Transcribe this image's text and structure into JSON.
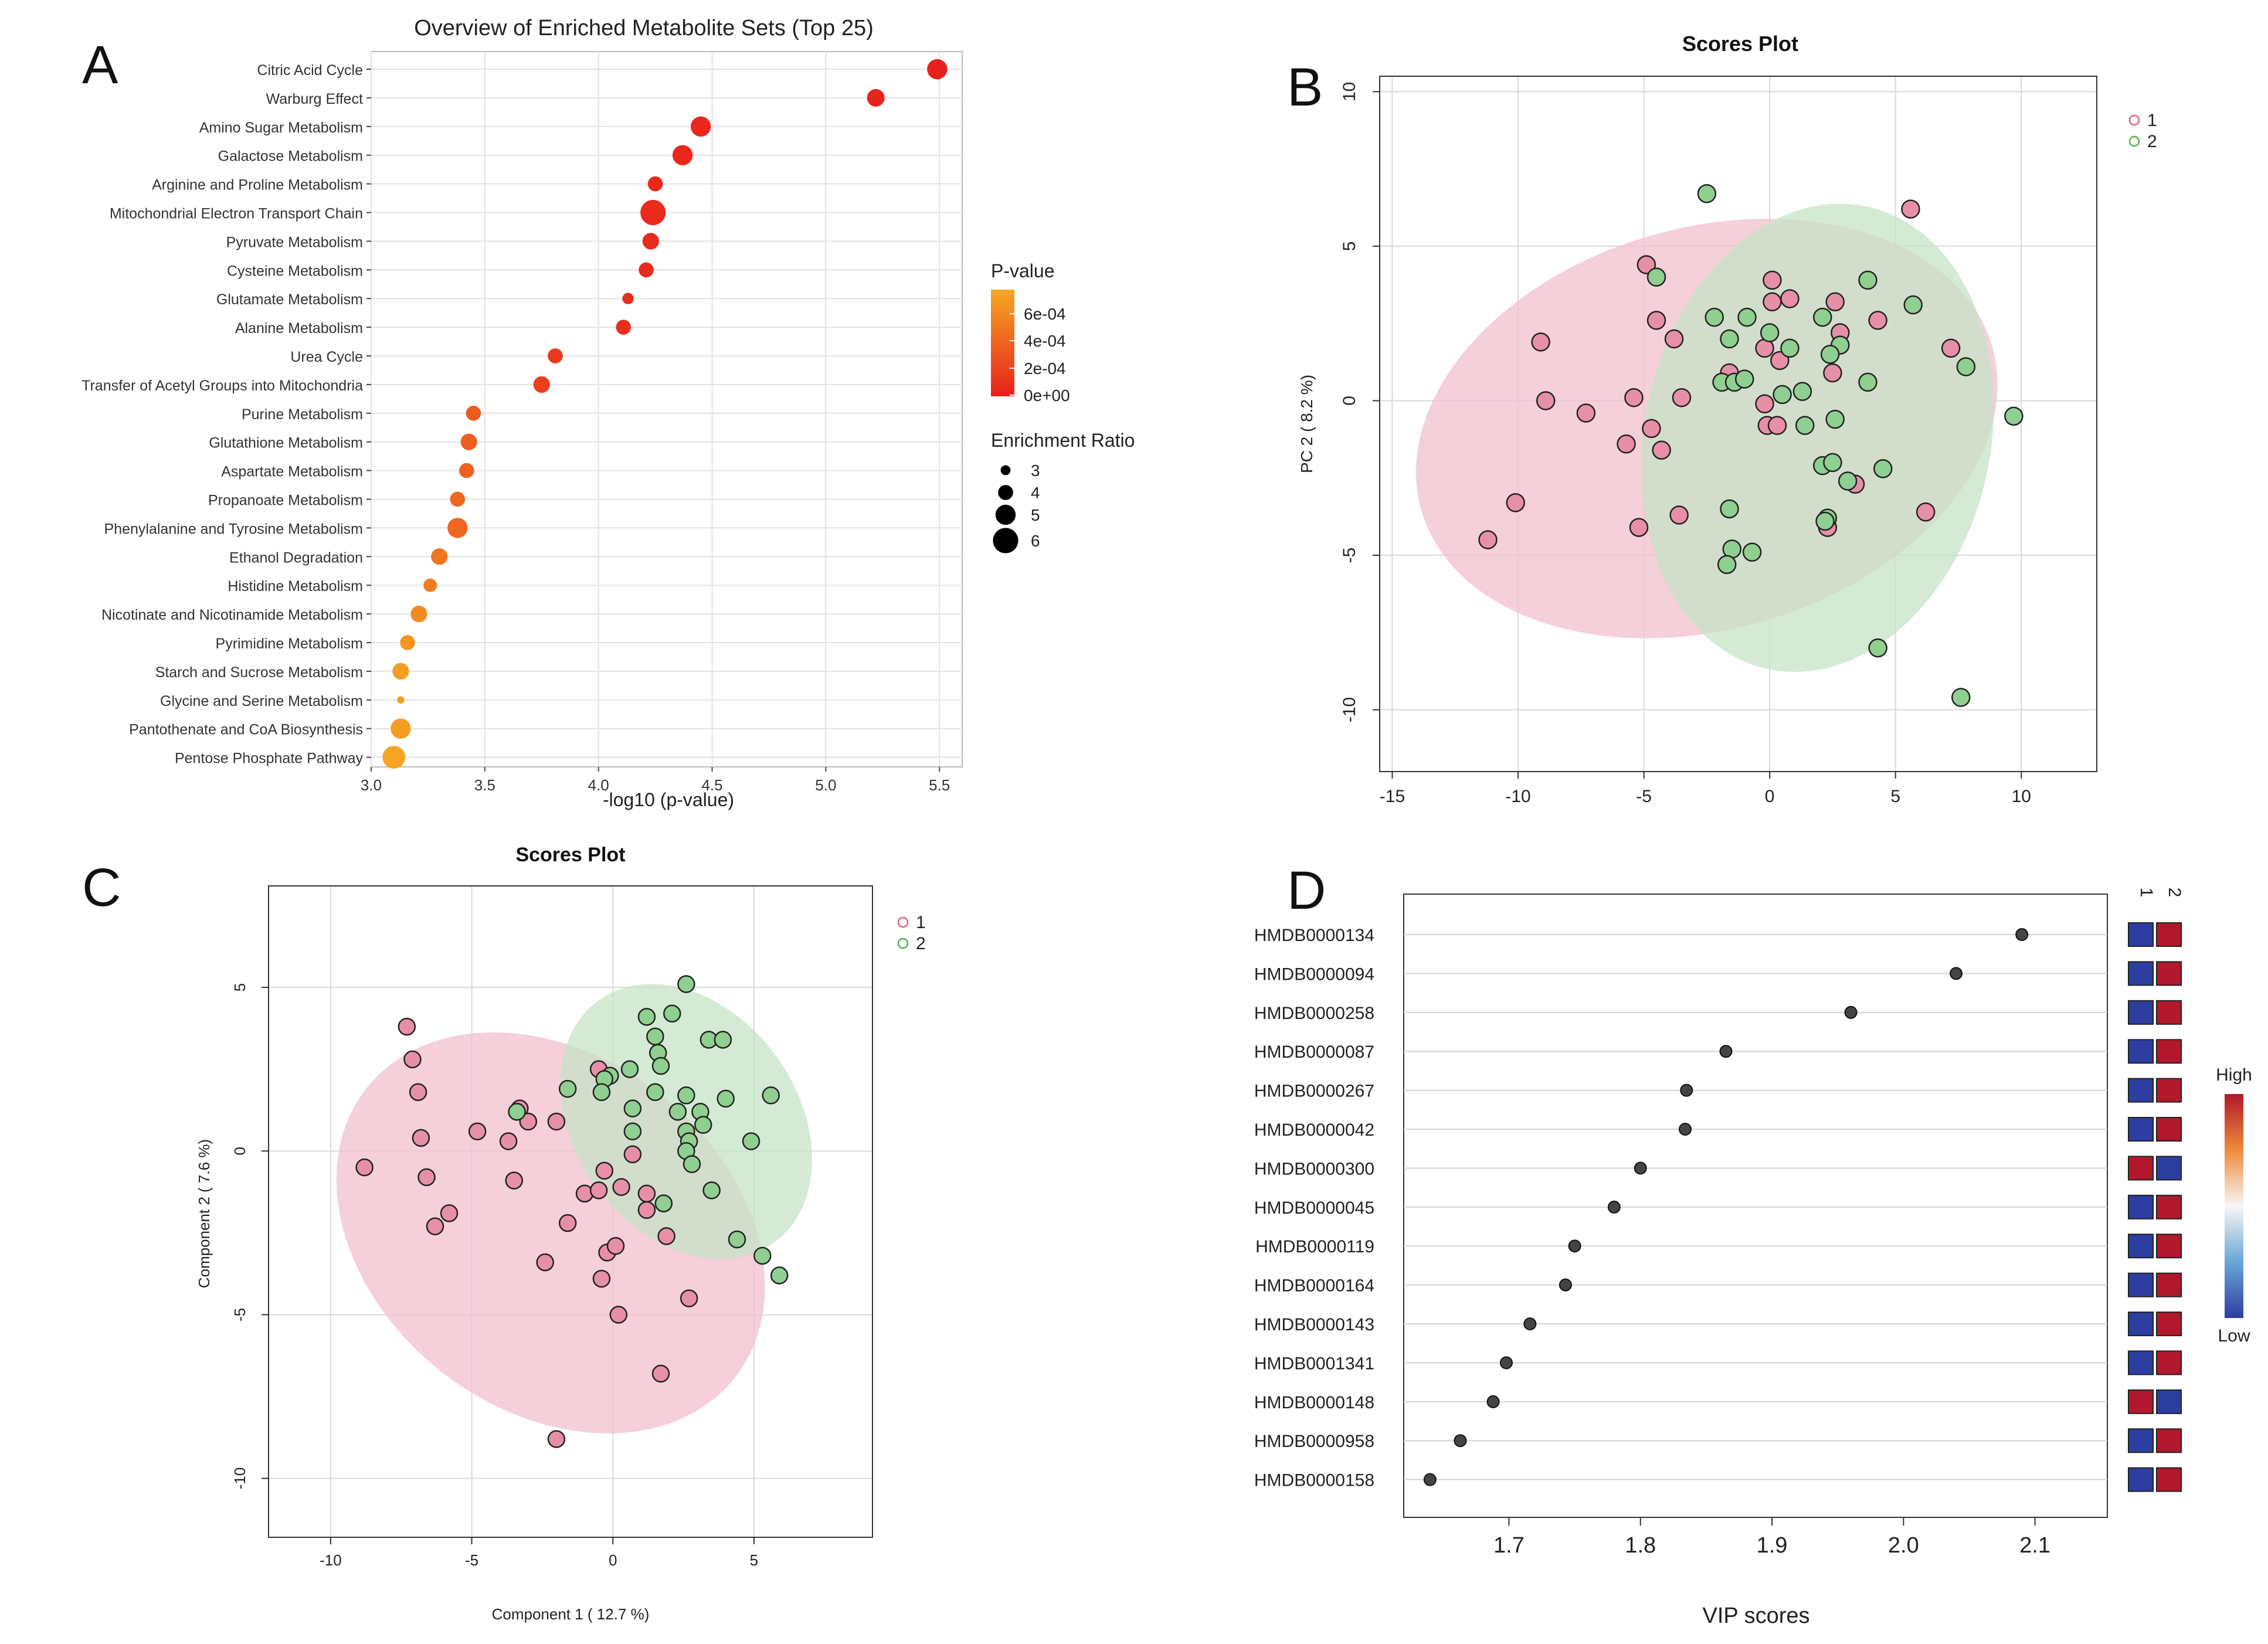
{
  "chart_data": [
    {
      "type": "scatter",
      "panel_label": "A",
      "title": "Overview of Enriched Metabolite Sets (Top 25)",
      "xlabel": "-log10 (p-value)",
      "ylabel": "",
      "xlim": [
        3.0,
        5.6
      ],
      "xticks": [
        "3.0",
        "3.5",
        "4.0",
        "4.5",
        "5.0",
        "5.5"
      ],
      "pathways": [
        {
          "name": "Citric Acid Cycle",
          "x": 5.49,
          "ratio": 5.0,
          "p": 0.0
        },
        {
          "name": "Warburg Effect",
          "x": 5.22,
          "ratio": 4.5,
          "p": 1e-05
        },
        {
          "name": "Amino Sugar Metabolism",
          "x": 4.45,
          "ratio": 5.0,
          "p": 4e-05
        },
        {
          "name": "Galactose Metabolism",
          "x": 4.37,
          "ratio": 5.0,
          "p": 4e-05
        },
        {
          "name": "Arginine and Proline Metabolism",
          "x": 4.25,
          "ratio": 4.0,
          "p": 5e-05
        },
        {
          "name": "Mitochondrial Electron Transport Chain",
          "x": 4.24,
          "ratio": 6.0,
          "p": 6e-05
        },
        {
          "name": "Pyruvate Metabolism",
          "x": 4.23,
          "ratio": 4.3,
          "p": 6e-05
        },
        {
          "name": "Cysteine Metabolism",
          "x": 4.21,
          "ratio": 4.0,
          "p": 6e-05
        },
        {
          "name": "Glutamate Metabolism",
          "x": 4.13,
          "ratio": 3.3,
          "p": 7e-05
        },
        {
          "name": "Alanine Metabolism",
          "x": 4.11,
          "ratio": 4.0,
          "p": 8e-05
        },
        {
          "name": "Urea Cycle",
          "x": 3.81,
          "ratio": 4.0,
          "p": 0.00015
        },
        {
          "name": "Transfer of Acetyl Groups into Mitochondria",
          "x": 3.75,
          "ratio": 4.3,
          "p": 0.00018
        },
        {
          "name": "Purine Metabolism",
          "x": 3.45,
          "ratio": 4.0,
          "p": 0.00035
        },
        {
          "name": "Glutathione Metabolism",
          "x": 3.43,
          "ratio": 4.3,
          "p": 0.00037
        },
        {
          "name": "Aspartate Metabolism",
          "x": 3.42,
          "ratio": 4.0,
          "p": 0.00038
        },
        {
          "name": "Propanoate Metabolism",
          "x": 3.38,
          "ratio": 4.0,
          "p": 0.00042
        },
        {
          "name": "Phenylalanine and Tyrosine Metabolism",
          "x": 3.38,
          "ratio": 5.0,
          "p": 0.00042
        },
        {
          "name": "Ethanol Degradation",
          "x": 3.3,
          "ratio": 4.3,
          "p": 0.0005
        },
        {
          "name": "Histidine Metabolism",
          "x": 3.26,
          "ratio": 3.7,
          "p": 0.00055
        },
        {
          "name": "Nicotinate and Nicotinamide Metabolism",
          "x": 3.21,
          "ratio": 4.3,
          "p": 0.00062
        },
        {
          "name": "Pyrimidine Metabolism",
          "x": 3.16,
          "ratio": 4.0,
          "p": 0.00069
        },
        {
          "name": "Starch and Sucrose Metabolism",
          "x": 3.13,
          "ratio": 4.3,
          "p": 0.00074
        },
        {
          "name": "Glycine and Serine Metabolism",
          "x": 3.13,
          "ratio": 2.5,
          "p": 0.00074
        },
        {
          "name": "Pantothenate and CoA Biosynthesis",
          "x": 3.13,
          "ratio": 5.0,
          "p": 0.00074
        },
        {
          "name": "Pentose Phosphate Pathway",
          "x": 3.1,
          "ratio": 5.5,
          "p": 0.00079
        }
      ],
      "color_legend": {
        "title": "P-value",
        "labels": [
          "6e-04",
          "4e-04",
          "2e-04",
          "0e+00"
        ],
        "color_low": "#e8201c",
        "color_high": "#f6a723"
      },
      "size_legend": {
        "title": "Enrichment Ratio",
        "values": [
          3,
          4,
          5,
          6
        ],
        "labels": [
          "3",
          "4",
          "5",
          "6"
        ]
      }
    },
    {
      "type": "scatter",
      "panel_label": "B",
      "title": "Scores Plot",
      "xlabel": "",
      "ylabel": "PC 2 ( 8.2 %)",
      "xlim": [
        -15.5,
        13
      ],
      "ylim": [
        -12,
        10.5
      ],
      "xticks": [
        -15,
        -10,
        -5,
        0,
        5,
        10
      ],
      "xtick_labels": [
        "-15",
        "-10",
        "-5",
        "0",
        "5",
        "10"
      ],
      "yticks": [
        -10,
        -5,
        0,
        5,
        10
      ],
      "ytick_labels": [
        "-10",
        "-5",
        "0",
        "5",
        "10"
      ],
      "legend": [
        "1",
        "2"
      ],
      "group_colors": {
        "1": "#e88fa8",
        "2": "#8fcf8f"
      },
      "ellipses": [
        {
          "group": "1",
          "cx": -2.5,
          "cy": -0.9,
          "rx": 11.8,
          "ry": 6.5,
          "rotation_deg": -16,
          "fill": "#f2bfcd"
        },
        {
          "group": "2",
          "cx": 1.9,
          "cy": -1.2,
          "rx": 9.4,
          "ry": 5.6,
          "rotation_deg": -78,
          "fill": "#c6e3c6"
        }
      ],
      "series": [
        {
          "name": "1",
          "points": [
            [
              5.6,
              6.2
            ],
            [
              -4.9,
              4.4
            ],
            [
              0.1,
              3.9
            ],
            [
              -4.5,
              2.6
            ],
            [
              -3.8,
              2.0
            ],
            [
              0.8,
              3.3
            ],
            [
              0.1,
              3.2
            ],
            [
              2.6,
              3.2
            ],
            [
              -9.1,
              1.9
            ],
            [
              4.3,
              2.6
            ],
            [
              2.8,
              2.2
            ],
            [
              7.2,
              1.7
            ],
            [
              -0.2,
              1.7
            ],
            [
              0.4,
              1.3
            ],
            [
              -1.6,
              0.9
            ],
            [
              2.5,
              0.9
            ],
            [
              -8.9,
              0.0
            ],
            [
              -5.4,
              0.1
            ],
            [
              -3.5,
              0.1
            ],
            [
              -0.2,
              -0.1
            ],
            [
              -7.3,
              -0.4
            ],
            [
              -4.7,
              -0.9
            ],
            [
              -0.1,
              -0.8
            ],
            [
              0.3,
              -0.8
            ],
            [
              -5.7,
              -1.4
            ],
            [
              -4.3,
              -1.6
            ],
            [
              3.4,
              -2.7
            ],
            [
              6.2,
              -3.6
            ],
            [
              -10.1,
              -3.3
            ],
            [
              -3.6,
              -3.7
            ],
            [
              2.3,
              -4.1
            ],
            [
              -5.2,
              -4.1
            ],
            [
              -11.2,
              -4.5
            ]
          ]
        },
        {
          "name": "2",
          "points": [
            [
              -2.5,
              6.7
            ],
            [
              -4.5,
              4.0
            ],
            [
              3.9,
              3.9
            ],
            [
              5.7,
              3.1
            ],
            [
              -2.2,
              2.7
            ],
            [
              -0.9,
              2.7
            ],
            [
              2.1,
              2.7
            ],
            [
              -1.6,
              2.0
            ],
            [
              0.0,
              2.2
            ],
            [
              2.8,
              1.8
            ],
            [
              0.8,
              1.7
            ],
            [
              2.4,
              1.5
            ],
            [
              7.8,
              1.1
            ],
            [
              -1.9,
              0.6
            ],
            [
              -1.4,
              0.6
            ],
            [
              -1.0,
              0.7
            ],
            [
              1.3,
              0.3
            ],
            [
              0.5,
              0.2
            ],
            [
              3.9,
              0.6
            ],
            [
              2.6,
              -0.6
            ],
            [
              1.4,
              -0.8
            ],
            [
              9.7,
              -0.5
            ],
            [
              2.1,
              -2.1
            ],
            [
              2.5,
              -2.0
            ],
            [
              4.5,
              -2.2
            ],
            [
              3.1,
              -2.6
            ],
            [
              -1.6,
              -3.5
            ],
            [
              2.3,
              -3.8
            ],
            [
              2.2,
              -3.9
            ],
            [
              -1.5,
              -4.8
            ],
            [
              -0.7,
              -4.9
            ],
            [
              -1.7,
              -5.3
            ],
            [
              4.3,
              -8.0
            ],
            [
              7.6,
              -9.6
            ]
          ]
        }
      ]
    },
    {
      "type": "scatter",
      "panel_label": "C",
      "title": "Scores Plot",
      "xlabel": "Component 1 ( 12.7 %)",
      "ylabel": "Component 2 ( 7.6 %)",
      "xlim": [
        -12.2,
        9.2
      ],
      "ylim": [
        -11.8,
        8.1
      ],
      "xticks": [
        -10,
        -5,
        0,
        5
      ],
      "xtick_labels": [
        "-10",
        "-5",
        "0",
        "5"
      ],
      "yticks": [
        -10,
        -5,
        0,
        5
      ],
      "ytick_labels": [
        "-10",
        "-5",
        "0",
        "5"
      ],
      "legend": [
        "1",
        "2"
      ],
      "group_colors": {
        "1": "#e88fa8",
        "2": "#8fcf8f"
      },
      "ellipses": [
        {
          "group": "1",
          "cx": -2.2,
          "cy": -2.5,
          "rx": 8.3,
          "ry": 5.4,
          "rotation_deg": 38,
          "fill": "#f2bfcd"
        },
        {
          "group": "2",
          "cx": 2.6,
          "cy": 0.9,
          "rx": 5.3,
          "ry": 3.4,
          "rotation_deg": 54,
          "fill": "#c6e3c6"
        }
      ],
      "series": [
        {
          "name": "1",
          "points": [
            [
              -7.3,
              3.8
            ],
            [
              -7.1,
              2.8
            ],
            [
              -6.9,
              1.8
            ],
            [
              -6.8,
              0.4
            ],
            [
              -6.6,
              -0.8
            ],
            [
              -6.3,
              -2.3
            ],
            [
              -5.8,
              -1.9
            ],
            [
              -8.8,
              -0.5
            ],
            [
              -4.8,
              0.6
            ],
            [
              -3.7,
              0.3
            ],
            [
              -3.5,
              -0.9
            ],
            [
              -3.3,
              1.3
            ],
            [
              -3.0,
              0.9
            ],
            [
              -2.0,
              0.9
            ],
            [
              -2.4,
              -3.4
            ],
            [
              -1.6,
              -2.2
            ],
            [
              -1.0,
              -1.3
            ],
            [
              -0.5,
              -1.2
            ],
            [
              -0.3,
              -0.6
            ],
            [
              -0.4,
              -3.9
            ],
            [
              -0.2,
              -3.1
            ],
            [
              0.1,
              -2.9
            ],
            [
              0.2,
              -5.0
            ],
            [
              0.3,
              -1.1
            ],
            [
              0.7,
              -0.1
            ],
            [
              1.2,
              -1.3
            ],
            [
              1.2,
              -1.8
            ],
            [
              1.9,
              -2.6
            ],
            [
              2.7,
              -4.5
            ],
            [
              1.7,
              -6.8
            ],
            [
              -2.0,
              -8.8
            ],
            [
              -0.5,
              2.5
            ]
          ]
        },
        {
          "name": "2",
          "points": [
            [
              2.6,
              5.1
            ],
            [
              2.1,
              4.2
            ],
            [
              1.2,
              4.1
            ],
            [
              1.5,
              3.5
            ],
            [
              1.6,
              3.0
            ],
            [
              3.4,
              3.4
            ],
            [
              3.9,
              3.4
            ],
            [
              1.7,
              2.6
            ],
            [
              0.6,
              2.5
            ],
            [
              -0.1,
              2.3
            ],
            [
              -0.3,
              2.2
            ],
            [
              -1.6,
              1.9
            ],
            [
              -0.4,
              1.8
            ],
            [
              1.5,
              1.8
            ],
            [
              2.6,
              1.7
            ],
            [
              4.0,
              1.6
            ],
            [
              5.6,
              1.7
            ],
            [
              -3.4,
              1.2
            ],
            [
              0.7,
              1.3
            ],
            [
              2.3,
              1.2
            ],
            [
              3.1,
              1.2
            ],
            [
              3.2,
              0.8
            ],
            [
              0.7,
              0.6
            ],
            [
              2.6,
              0.6
            ],
            [
              2.7,
              0.3
            ],
            [
              2.6,
              0.0
            ],
            [
              2.8,
              -0.4
            ],
            [
              4.9,
              0.3
            ],
            [
              3.5,
              -1.2
            ],
            [
              1.8,
              -1.6
            ],
            [
              4.4,
              -2.7
            ],
            [
              5.3,
              -3.2
            ],
            [
              5.9,
              -3.8
            ]
          ]
        }
      ]
    },
    {
      "type": "scatter",
      "panel_label": "D",
      "title": "",
      "xlabel": "VIP scores",
      "ylabel": "",
      "xlim": [
        1.62,
        2.155
      ],
      "xticks": [
        1.7,
        1.8,
        1.9,
        2.0,
        2.1
      ],
      "xtick_labels": [
        "1.7",
        "1.8",
        "1.9",
        "2.0",
        "2.1"
      ],
      "metabolites": [
        {
          "name": "HMDB0000134",
          "vip": 2.09,
          "group_levels": [
            "low",
            "high"
          ]
        },
        {
          "name": "HMDB0000094",
          "vip": 2.04,
          "group_levels": [
            "low",
            "high"
          ]
        },
        {
          "name": "HMDB0000258",
          "vip": 1.96,
          "group_levels": [
            "low",
            "high"
          ]
        },
        {
          "name": "HMDB0000087",
          "vip": 1.865,
          "group_levels": [
            "low",
            "high"
          ]
        },
        {
          "name": "HMDB0000267",
          "vip": 1.835,
          "group_levels": [
            "low",
            "high"
          ]
        },
        {
          "name": "HMDB0000042",
          "vip": 1.834,
          "group_levels": [
            "low",
            "high"
          ]
        },
        {
          "name": "HMDB0000300",
          "vip": 1.8,
          "group_levels": [
            "high",
            "low"
          ]
        },
        {
          "name": "HMDB0000045",
          "vip": 1.78,
          "group_levels": [
            "low",
            "high"
          ]
        },
        {
          "name": "HMDB0000119",
          "vip": 1.75,
          "group_levels": [
            "low",
            "high"
          ]
        },
        {
          "name": "HMDB0000164",
          "vip": 1.743,
          "group_levels": [
            "low",
            "high"
          ]
        },
        {
          "name": "HMDB0000143",
          "vip": 1.716,
          "group_levels": [
            "low",
            "high"
          ]
        },
        {
          "name": "HMDB0001341",
          "vip": 1.698,
          "group_levels": [
            "low",
            "high"
          ]
        },
        {
          "name": "HMDB0000148",
          "vip": 1.688,
          "group_levels": [
            "high",
            "low"
          ]
        },
        {
          "name": "HMDB0000958",
          "vip": 1.663,
          "group_levels": [
            "low",
            "high"
          ]
        },
        {
          "name": "HMDB0000158",
          "vip": 1.64,
          "group_levels": [
            "low",
            "high"
          ]
        }
      ],
      "group_columns": [
        "1",
        "2"
      ],
      "colorbar": {
        "high_label": "High",
        "low_label": "Low",
        "high_color": "#b2182b",
        "low_color": "#2c3ea0"
      }
    }
  ]
}
